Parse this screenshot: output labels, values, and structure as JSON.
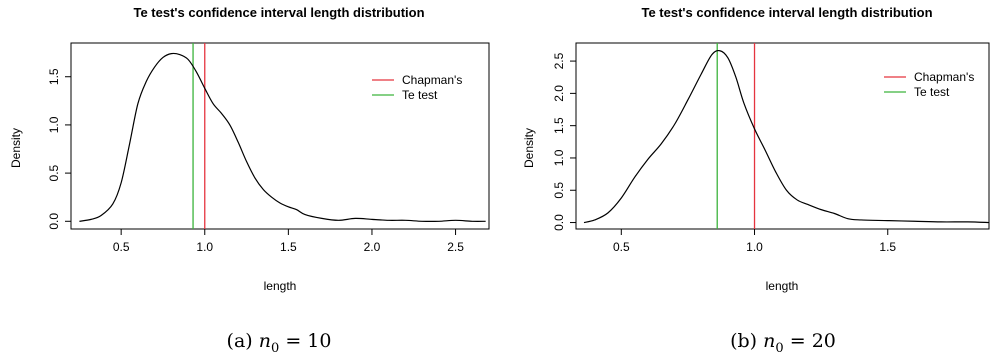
{
  "chart_data": [
    {
      "type": "line",
      "title": "Te test's confidence interval length distribution",
      "xlabel": "length",
      "ylabel": "Density",
      "xlim": [
        0.2,
        2.7
      ],
      "ylim": [
        -0.08,
        1.85
      ],
      "xticks": [
        "0.5",
        "1.0",
        "1.5",
        "2.0",
        "2.5"
      ],
      "xtick_values": [
        0.5,
        1.0,
        1.5,
        2.0,
        2.5
      ],
      "yticks": [
        "0.0",
        "0.5",
        "1.0",
        "1.5"
      ],
      "ytick_values": [
        0.0,
        0.5,
        1.0,
        1.5
      ],
      "series": [
        {
          "color": "#000000",
          "x": [
            0.25,
            0.32,
            0.38,
            0.45,
            0.5,
            0.55,
            0.6,
            0.65,
            0.7,
            0.75,
            0.8,
            0.85,
            0.9,
            0.95,
            1.0,
            1.05,
            1.1,
            1.15,
            1.2,
            1.25,
            1.3,
            1.35,
            1.4,
            1.45,
            1.5,
            1.55,
            1.6,
            1.7,
            1.8,
            1.9,
            2.0,
            2.1,
            2.2,
            2.3,
            2.4,
            2.5,
            2.6,
            2.68
          ],
          "y": [
            0.0,
            0.02,
            0.06,
            0.18,
            0.4,
            0.8,
            1.22,
            1.45,
            1.6,
            1.7,
            1.74,
            1.73,
            1.68,
            1.55,
            1.38,
            1.22,
            1.12,
            1.0,
            0.82,
            0.62,
            0.45,
            0.33,
            0.25,
            0.19,
            0.15,
            0.12,
            0.07,
            0.03,
            0.01,
            0.03,
            0.02,
            0.01,
            0.01,
            0.0,
            0.0,
            0.01,
            0.0,
            0.0
          ]
        }
      ],
      "vlines": [
        {
          "name": "Chapman's",
          "x": 1.0,
          "color": "#e5343f"
        },
        {
          "name": "Te test",
          "x": 0.93,
          "color": "#3cb33c"
        }
      ],
      "legend": "top-right",
      "grid": false
    },
    {
      "type": "line",
      "title": "Te test's confidence interval length distribution",
      "xlabel": "length",
      "ylabel": "Density",
      "xlim": [
        0.33,
        1.88
      ],
      "ylim": [
        -0.1,
        2.78
      ],
      "xticks": [
        "0.5",
        "1.0",
        "1.5"
      ],
      "xtick_values": [
        0.5,
        1.0,
        1.5
      ],
      "yticks": [
        "0.0",
        "0.5",
        "1.0",
        "1.5",
        "2.0",
        "2.5"
      ],
      "ytick_values": [
        0.0,
        0.5,
        1.0,
        1.5,
        2.0,
        2.5
      ],
      "series": [
        {
          "color": "#000000",
          "x": [
            0.36,
            0.4,
            0.45,
            0.5,
            0.55,
            0.6,
            0.65,
            0.7,
            0.75,
            0.8,
            0.84,
            0.87,
            0.9,
            0.93,
            0.96,
            1.0,
            1.04,
            1.08,
            1.12,
            1.16,
            1.2,
            1.25,
            1.3,
            1.35,
            1.4,
            1.5,
            1.6,
            1.7,
            1.8,
            1.88
          ],
          "y": [
            0.0,
            0.04,
            0.15,
            0.38,
            0.7,
            0.98,
            1.22,
            1.52,
            1.9,
            2.3,
            2.6,
            2.66,
            2.55,
            2.25,
            1.85,
            1.45,
            1.12,
            0.78,
            0.5,
            0.35,
            0.28,
            0.2,
            0.14,
            0.06,
            0.04,
            0.03,
            0.02,
            0.01,
            0.01,
            0.0
          ]
        }
      ],
      "vlines": [
        {
          "name": "Chapman's",
          "x": 1.0,
          "color": "#e5343f"
        },
        {
          "name": "Te test",
          "x": 0.86,
          "color": "#3cb33c"
        }
      ],
      "legend": "top-right",
      "grid": false
    }
  ],
  "captions": [
    {
      "label": "(a)",
      "var": "n",
      "sub": "0",
      "rhs": "= 10"
    },
    {
      "label": "(b)",
      "var": "n",
      "sub": "0",
      "rhs": "= 20"
    }
  ]
}
